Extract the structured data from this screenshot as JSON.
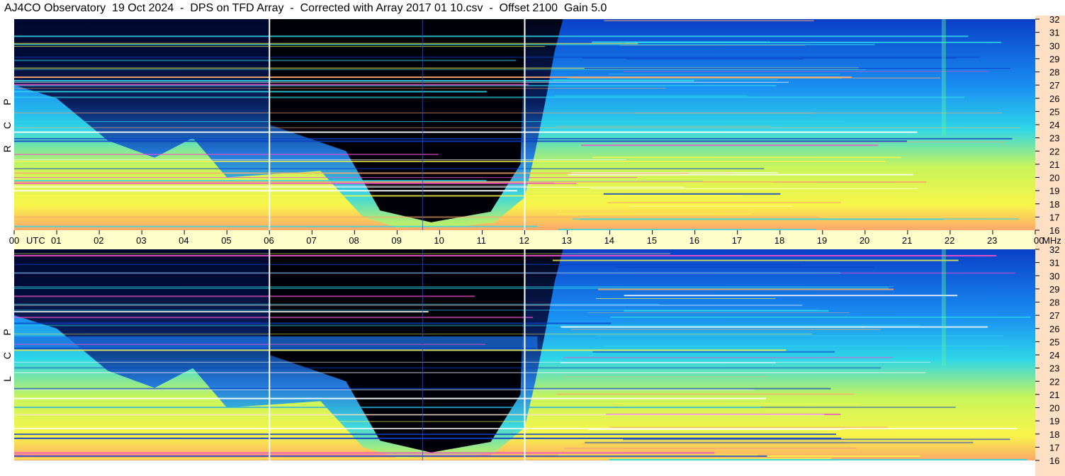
{
  "title": "AJ4CO Observatory  19 Oct 2024  -  DPS on TFD Array  -  Corrected with Array 2017 01 10.csv  -  Offset 2100  Gain 5.0",
  "colors": {
    "axis_band": "#ffffcc",
    "freq_band": "#ffe0c4",
    "background": "#ffffff",
    "noise": "#000000"
  },
  "chart_data": {
    "type": "heatmap",
    "panels": [
      {
        "polarization_label": [
          "R",
          "C",
          "P"
        ]
      },
      {
        "polarization_label": [
          "L",
          "C",
          "P"
        ]
      }
    ],
    "x_axis": {
      "unit_label": "UTC",
      "ticks": [
        "00",
        "01",
        "02",
        "03",
        "04",
        "05",
        "06",
        "07",
        "08",
        "09",
        "10",
        "11",
        "12",
        "13",
        "14",
        "15",
        "16",
        "17",
        "18",
        "19",
        "20",
        "21",
        "22",
        "23",
        "00"
      ],
      "range": [
        0,
        24
      ],
      "markers": [
        6,
        12
      ]
    },
    "y_axis": {
      "unit_label": "MHz",
      "ticks": [
        "16",
        "17",
        "18",
        "19",
        "20",
        "21",
        "22",
        "23",
        "24",
        "25",
        "26",
        "27",
        "28",
        "29",
        "30",
        "31",
        "32"
      ],
      "range": [
        16,
        32
      ]
    },
    "colormap": [
      "#000008",
      "#06124f",
      "#0a3fc8",
      "#1a8ff2",
      "#2ed6e8",
      "#5cf5a0",
      "#c8f55c",
      "#f8f54a",
      "#fca86a",
      "#f050c8",
      "#ffffff"
    ]
  }
}
